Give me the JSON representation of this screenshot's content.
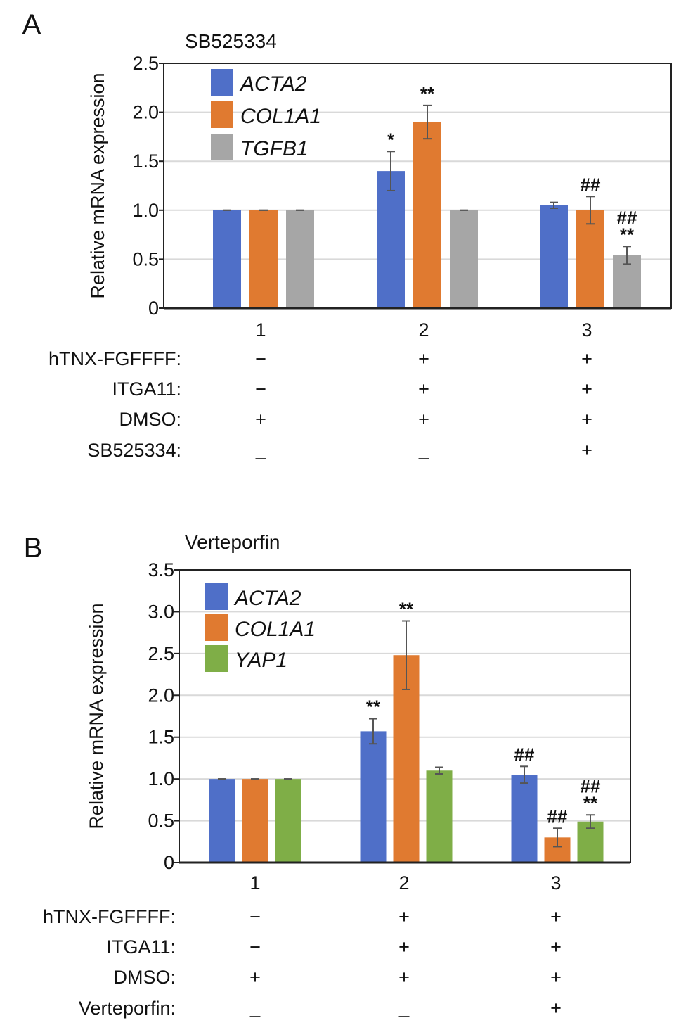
{
  "chart_data": [
    {
      "type": "bar",
      "panel_label": "A",
      "title": "SB525334",
      "ylabel": "Relative mRNA expression",
      "ylim": [
        0,
        2.5
      ],
      "yticks": [
        "0",
        "0.5",
        "1.0",
        "1.5",
        "2.0",
        "2.5"
      ],
      "ytick_values": [
        0,
        0.5,
        1.0,
        1.5,
        2.0,
        2.5
      ],
      "categories": [
        "1",
        "2",
        "3"
      ],
      "grid": true,
      "legend_position": "top-left",
      "series": [
        {
          "name": "ACTA2",
          "color": "#4f6fc8",
          "values": [
            1.0,
            1.4,
            1.05
          ],
          "errors": [
            0.0,
            0.2,
            0.03
          ],
          "annotations": [
            "",
            "*",
            ""
          ]
        },
        {
          "name": "COL1A1",
          "color": "#e07a30",
          "values": [
            1.0,
            1.9,
            1.0
          ],
          "errors": [
            0.0,
            0.17,
            0.14
          ],
          "annotations": [
            "",
            "**",
            "##"
          ]
        },
        {
          "name": "TGFB1",
          "color": "#a6a6a6",
          "values": [
            1.0,
            1.0,
            0.54
          ],
          "errors": [
            0.0,
            0.0,
            0.09
          ],
          "annotations": [
            "",
            "",
            "##\n**"
          ]
        }
      ],
      "conditions": [
        {
          "label": "hTNX-FGFFFF:",
          "values": [
            "−",
            "+",
            "+"
          ]
        },
        {
          "label": "ITGA11:",
          "values": [
            "−",
            "+",
            "+"
          ]
        },
        {
          "label": "DMSO:",
          "values": [
            "+",
            "+",
            "+"
          ]
        },
        {
          "label": "SB525334:",
          "values": [
            "–",
            "–",
            "+"
          ]
        }
      ]
    },
    {
      "type": "bar",
      "panel_label": "B",
      "title": "Verteporfin",
      "ylabel": "Relative mRNA expression",
      "ylim": [
        0,
        3.5
      ],
      "yticks": [
        "0",
        "0.5",
        "1.0",
        "1.5",
        "2.0",
        "2.5",
        "3.0",
        "3.5"
      ],
      "ytick_values": [
        0,
        0.5,
        1.0,
        1.5,
        2.0,
        2.5,
        3.0,
        3.5
      ],
      "categories": [
        "1",
        "2",
        "3"
      ],
      "grid": true,
      "legend_position": "top-left",
      "series": [
        {
          "name": "ACTA2",
          "color": "#4f6fc8",
          "values": [
            1.0,
            1.57,
            1.05
          ],
          "errors": [
            0.0,
            0.15,
            0.1
          ],
          "annotations": [
            "",
            "**",
            "##"
          ]
        },
        {
          "name": "COL1A1",
          "color": "#e07a30",
          "values": [
            1.0,
            2.48,
            0.3
          ],
          "errors": [
            0.0,
            0.41,
            0.11
          ],
          "annotations": [
            "",
            "**",
            "##"
          ]
        },
        {
          "name": "YAP1",
          "color": "#7fae47",
          "values": [
            1.0,
            1.1,
            0.49
          ],
          "errors": [
            0.0,
            0.04,
            0.08
          ],
          "annotations": [
            "",
            "",
            "##\n**"
          ]
        }
      ],
      "conditions": [
        {
          "label": "hTNX-FGFFFF:",
          "values": [
            "−",
            "+",
            "+"
          ]
        },
        {
          "label": "ITGA11:",
          "values": [
            "−",
            "+",
            "+"
          ]
        },
        {
          "label": "DMSO:",
          "values": [
            "+",
            "+",
            "+"
          ]
        },
        {
          "label": "Verteporfin:",
          "values": [
            "–",
            "–",
            "+"
          ]
        }
      ]
    }
  ]
}
